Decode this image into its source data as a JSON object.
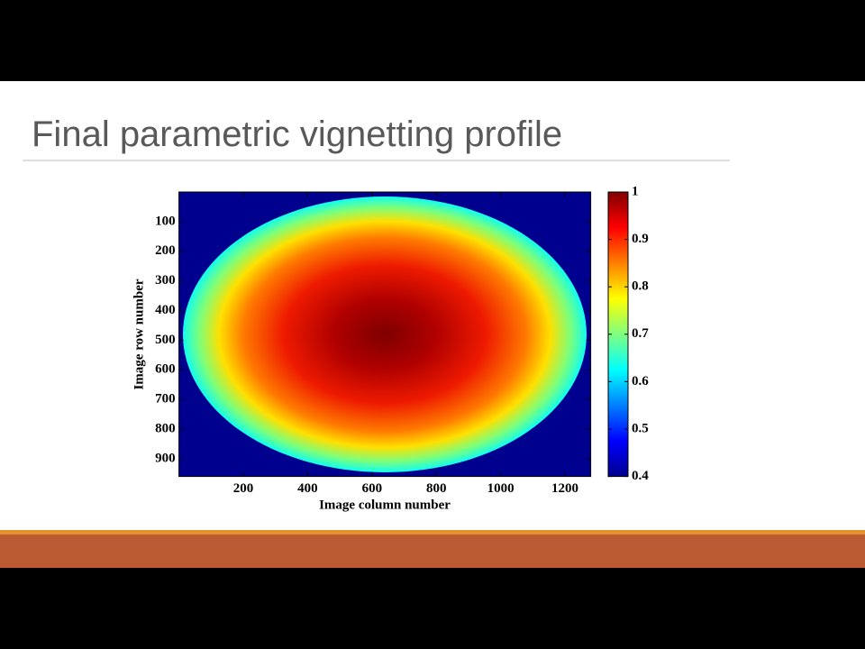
{
  "slide_title": "Final parametric vignetting profile",
  "chart_data": {
    "type": "heatmap",
    "x_label": "Image column number",
    "y_label": "Image row number",
    "xlim": [
      0,
      1280
    ],
    "xticks": [
      200,
      400,
      600,
      800,
      1000,
      1200
    ],
    "ylim": [
      960,
      0
    ],
    "yticks": [
      100,
      200,
      300,
      400,
      500,
      600,
      700,
      800,
      900
    ],
    "clim": [
      0.4,
      1
    ],
    "cticks": [
      0.4,
      0.5,
      0.6,
      0.7,
      0.8,
      0.9,
      1
    ]
  }
}
